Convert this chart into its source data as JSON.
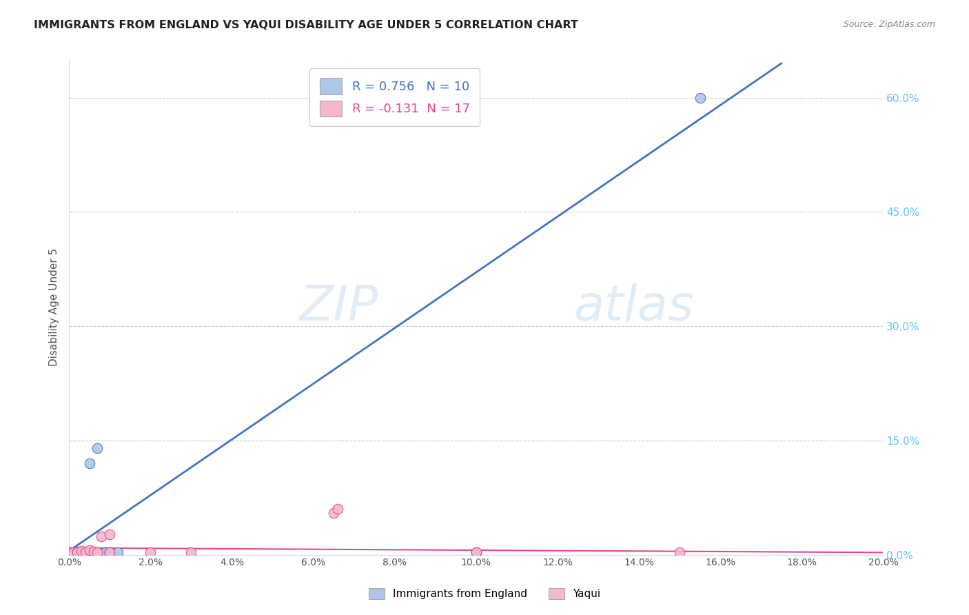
{
  "title": "IMMIGRANTS FROM ENGLAND VS YAQUI DISABILITY AGE UNDER 5 CORRELATION CHART",
  "source": "Source: ZipAtlas.com",
  "ylabel": "Disability Age Under 5",
  "legend_label1": "Immigrants from England",
  "legend_label2": "Yaqui",
  "R1": 0.756,
  "N1": 10,
  "R2": -0.131,
  "N2": 17,
  "blue_color": "#aec6e8",
  "pink_color": "#f4b8c8",
  "blue_line_color": "#4472c4",
  "pink_line_color": "#e84393",
  "title_color": "#222222",
  "right_tick_color": "#5bc8f5",
  "xlim": [
    0.0,
    0.2
  ],
  "ylim": [
    0.0,
    0.65
  ],
  "xticks": [
    0.0,
    0.02,
    0.04,
    0.06,
    0.08,
    0.1,
    0.12,
    0.14,
    0.16,
    0.18,
    0.2
  ],
  "yticks_right": [
    0.0,
    0.15,
    0.3,
    0.45,
    0.6
  ],
  "blue_scatter_x": [
    0.002,
    0.004,
    0.005,
    0.007,
    0.009,
    0.01,
    0.01,
    0.012,
    0.1,
    0.155
  ],
  "blue_scatter_y": [
    0.003,
    0.003,
    0.12,
    0.14,
    0.003,
    0.003,
    0.003,
    0.003,
    0.003,
    0.6
  ],
  "pink_scatter_x": [
    0.001,
    0.002,
    0.002,
    0.003,
    0.004,
    0.005,
    0.006,
    0.007,
    0.008,
    0.01,
    0.01,
    0.02,
    0.03,
    0.065,
    0.066,
    0.1,
    0.15
  ],
  "pink_scatter_y": [
    0.003,
    0.004,
    0.003,
    0.005,
    0.003,
    0.006,
    0.004,
    0.003,
    0.024,
    0.027,
    0.003,
    0.003,
    0.003,
    0.055,
    0.06,
    0.003,
    0.003
  ],
  "blue_line_x0": 0.0,
  "blue_line_y0": 0.005,
  "blue_line_x1": 0.175,
  "blue_line_y1": 0.645,
  "pink_line_x0": 0.0,
  "pink_line_y0": 0.009,
  "pink_line_x1": 0.2,
  "pink_line_y1": 0.003
}
